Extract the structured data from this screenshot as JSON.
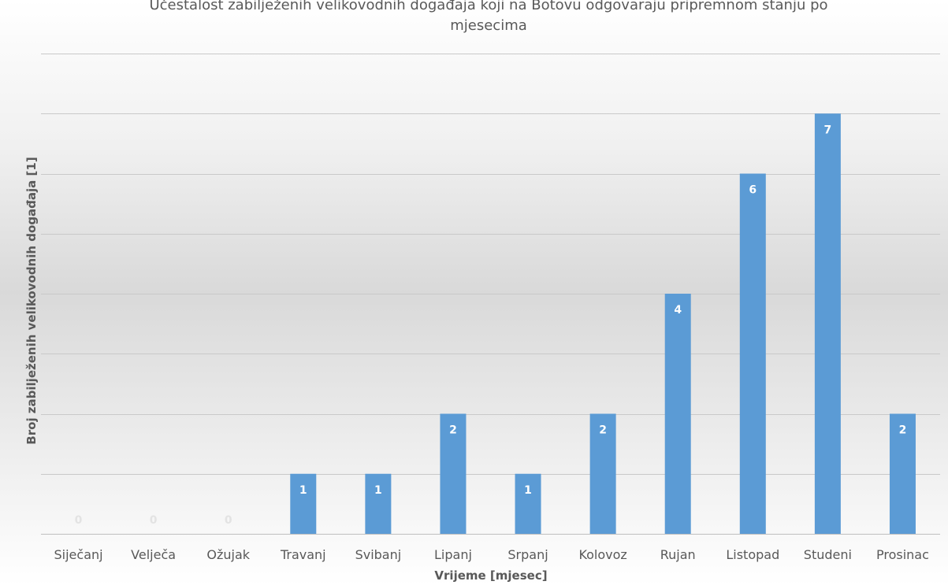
{
  "chart_data": {
    "type": "bar",
    "title_lines": [
      "Učestalost zabilježenih velikovodnih događaja koji na Botovu odgovaraju pripremnom stanju po",
      "mjesecima"
    ],
    "xlabel": "Vrijeme [mjesec]",
    "ylabel": "Broj zabilježenih velikovodnih događaja  [1]",
    "categories": [
      "Siječanj",
      "Velječa",
      "Ožujak",
      "Travanj",
      "Svibanj",
      "Lipanj",
      "Srpanj",
      "Kolovoz",
      "Rujan",
      "Listopad",
      "Studeni",
      "Prosinac"
    ],
    "values": [
      0,
      0,
      0,
      1,
      1,
      2,
      1,
      2,
      4,
      6,
      7,
      2
    ],
    "ylim": [
      0,
      8
    ],
    "grid": true,
    "bar_color": "#5b9bd5",
    "data_labels": true
  }
}
